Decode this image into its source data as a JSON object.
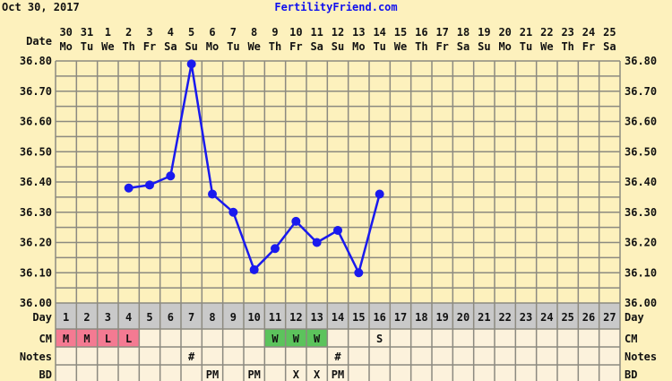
{
  "header": {
    "date": "Oct 30, 2017",
    "site": "FertilityFriend.com"
  },
  "chart_data": {
    "type": "line",
    "title": "",
    "xlabel": "Day",
    "ylabel": "",
    "ylim": [
      36.0,
      36.8
    ],
    "yticks": [
      "36.00",
      "36.10",
      "36.20",
      "36.30",
      "36.40",
      "36.50",
      "36.60",
      "36.70",
      "36.80"
    ],
    "grid": true,
    "date_label": "Date",
    "dates": [
      "30",
      "31",
      "1",
      "2",
      "3",
      "4",
      "5",
      "6",
      "7",
      "8",
      "9",
      "10",
      "11",
      "12",
      "13",
      "14",
      "15",
      "16",
      "17",
      "18",
      "19",
      "20",
      "21",
      "22",
      "23",
      "24",
      "25"
    ],
    "weekdays": [
      "Mo",
      "Tu",
      "We",
      "Th",
      "Fr",
      "Sa",
      "Su",
      "Mo",
      "Tu",
      "We",
      "Th",
      "Fr",
      "Sa",
      "Su",
      "Mo",
      "Tu",
      "We",
      "Th",
      "Fr",
      "Sa",
      "Su",
      "Mo",
      "Tu",
      "We",
      "Th",
      "Fr",
      "Sa"
    ],
    "days": [
      1,
      2,
      3,
      4,
      5,
      6,
      7,
      8,
      9,
      10,
      11,
      12,
      13,
      14,
      15,
      16,
      17,
      18,
      19,
      20,
      21,
      22,
      23,
      24,
      25,
      26,
      27
    ],
    "series": [
      {
        "x": [
          4,
          5,
          6,
          7,
          8,
          9,
          10,
          11,
          12,
          13,
          14,
          15,
          16
        ],
        "values": [
          36.38,
          36.39,
          36.42,
          36.79,
          36.36,
          36.3,
          36.11,
          36.18,
          36.27,
          36.2,
          36.24,
          36.1,
          36.36
        ],
        "color": "#1a1aee"
      }
    ],
    "rows": {
      "day_label": "Day",
      "cm_label": "CM",
      "notes_label": "Notes",
      "bd_label": "BD",
      "cm": [
        "M",
        "M",
        "L",
        "L",
        "",
        "",
        "",
        "",
        "",
        "",
        "W",
        "W",
        "W",
        "",
        "",
        "S",
        "",
        "",
        "",
        "",
        "",
        "",
        "",
        "",
        "",
        "",
        ""
      ],
      "notes": [
        "",
        "",
        "",
        "",
        "",
        "",
        "#",
        "",
        "",
        "",
        "",
        "",
        "",
        "#",
        "",
        "",
        "",
        "",
        "",
        "",
        "",
        "",
        "",
        "",
        "",
        "",
        ""
      ],
      "bd": [
        "",
        "",
        "",
        "",
        "",
        "",
        "",
        "PM",
        "",
        "PM",
        "",
        "X",
        "X",
        "PM",
        "",
        "",
        "",
        "",
        "",
        "",
        "",
        "",
        "",
        "",
        "",
        "",
        ""
      ]
    },
    "colors": {
      "background": "#fdf1bd",
      "cell": "#fcf2dc",
      "day_row": "#c9c9c9",
      "cm_menses": "#f47a92",
      "cm_wet": "#5cc35c",
      "grid": "#8c8a80",
      "line": "#1a1aee"
    }
  }
}
